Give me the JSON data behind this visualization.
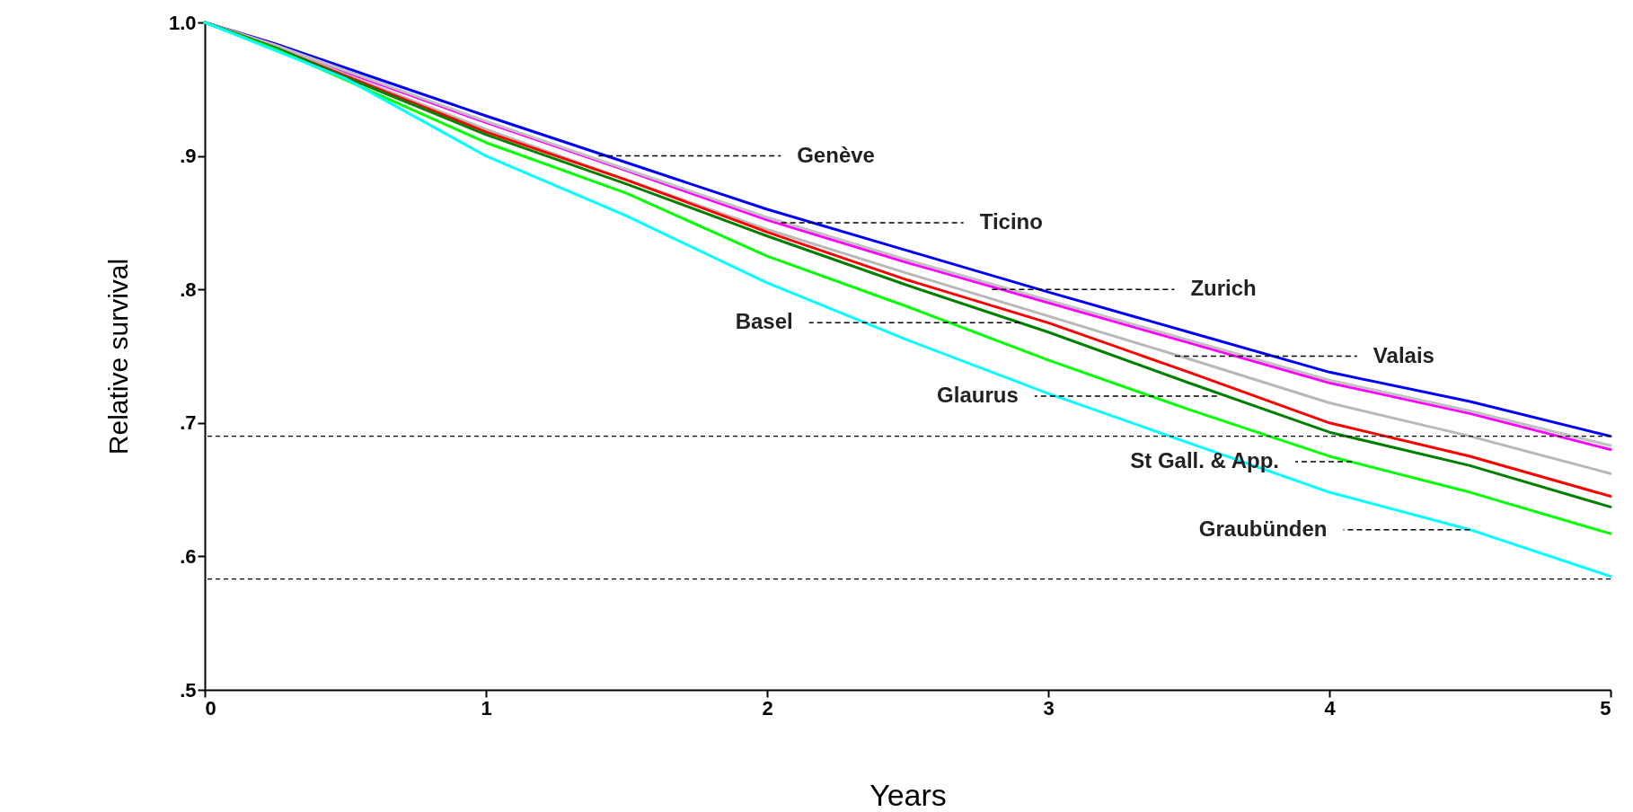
{
  "chart_data": {
    "type": "line",
    "xlabel": "Years",
    "ylabel": "Relative survival",
    "x": [
      0,
      0.25,
      0.5,
      1,
      1.5,
      2,
      2.5,
      3,
      3.5,
      4,
      4.5,
      5
    ],
    "series": [
      {
        "color": "#0000ff",
        "values": [
          1.0,
          0.984,
          0.966,
          0.93,
          0.895,
          0.86,
          0.829,
          0.798,
          0.768,
          0.738,
          0.716,
          0.69
        ]
      },
      {
        "color": "#ff00ff",
        "values": [
          1.0,
          0.983,
          0.963,
          0.925,
          0.889,
          0.852,
          0.82,
          0.79,
          0.76,
          0.73,
          0.707,
          0.68
        ]
      },
      {
        "color": "#c0c0c0",
        "values": [
          1.0,
          0.983,
          0.964,
          0.926,
          0.89,
          0.854,
          0.822,
          0.792,
          0.762,
          0.732,
          0.709,
          0.683
        ]
      },
      {
        "color": "#b8b8b8",
        "values": [
          1.0,
          0.982,
          0.961,
          0.92,
          0.882,
          0.845,
          0.812,
          0.78,
          0.748,
          0.715,
          0.69,
          0.662
        ]
      },
      {
        "color": "#ff0000",
        "values": [
          1.0,
          0.981,
          0.96,
          0.918,
          0.882,
          0.843,
          0.807,
          0.775,
          0.738,
          0.7,
          0.675,
          0.645
        ]
      },
      {
        "color": "#008000",
        "values": [
          1.0,
          0.981,
          0.959,
          0.916,
          0.879,
          0.84,
          0.803,
          0.768,
          0.73,
          0.693,
          0.668,
          0.637
        ]
      },
      {
        "color": "#00ff00",
        "values": [
          1.0,
          0.98,
          0.957,
          0.91,
          0.872,
          0.825,
          0.787,
          0.747,
          0.71,
          0.675,
          0.648,
          0.617
        ]
      },
      {
        "color": "#00ffff",
        "values": [
          1.0,
          0.979,
          0.958,
          0.9,
          0.855,
          0.805,
          0.762,
          0.722,
          0.685,
          0.648,
          0.62,
          0.585
        ]
      }
    ],
    "xlim": [
      0,
      5
    ],
    "xticks": [
      0,
      1,
      2,
      3,
      4,
      5
    ],
    "ylim": [
      0.5,
      1.0
    ],
    "yticks": [
      {
        "value": 0.5,
        "label": ".5"
      },
      {
        "value": 0.6,
        "label": ".6"
      },
      {
        "value": 0.7,
        "label": ".7"
      },
      {
        "value": 0.8,
        "label": ".8"
      },
      {
        "value": 0.9,
        "label": ".9"
      },
      {
        "value": 1.0,
        "label": "1.0"
      }
    ],
    "ref_lines": [
      {
        "axis": "y",
        "value": 0.69,
        "color": "#000000",
        "line_style": "dashed"
      },
      {
        "axis": "y",
        "value": 0.583,
        "color": "#000000",
        "line_style": "dashed"
      }
    ],
    "annotations": [
      {
        "text": "Genève",
        "x": 1.4,
        "y": 0.9
      },
      {
        "text": "Ticino",
        "x": 2.05,
        "y": 0.85
      },
      {
        "text": "Zurich",
        "x": 2.8,
        "y": 0.8
      },
      {
        "text": "Basel",
        "x": 2.9,
        "y": 0.775
      },
      {
        "text": "Valais",
        "x": 3.45,
        "y": 0.75
      },
      {
        "text": "Glaurus",
        "x": 3.6,
        "y": 0.72
      },
      {
        "text": "St Gall. & App.",
        "x": 4.08,
        "y": 0.671
      },
      {
        "text": "Graubünden",
        "x": 4.5,
        "y": 0.62
      }
    ],
    "grid": false,
    "legend": false,
    "line_style": "solid",
    "marker": "none"
  }
}
